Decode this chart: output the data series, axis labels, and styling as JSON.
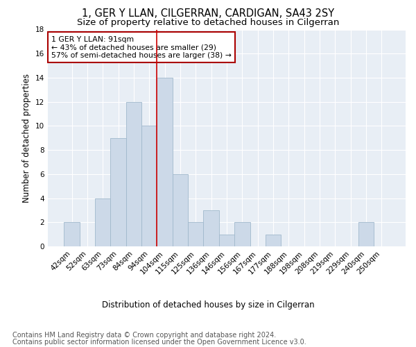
{
  "title": "1, GER Y LLAN, CILGERRAN, CARDIGAN, SA43 2SY",
  "subtitle": "Size of property relative to detached houses in Cilgerran",
  "xlabel": "Distribution of detached houses by size in Cilgerran",
  "ylabel": "Number of detached properties",
  "footer_line1": "Contains HM Land Registry data © Crown copyright and database right 2024.",
  "footer_line2": "Contains public sector information licensed under the Open Government Licence v3.0.",
  "annotation_line1": "1 GER Y LLAN: 91sqm",
  "annotation_line2": "← 43% of detached houses are smaller (29)",
  "annotation_line3": "57% of semi-detached houses are larger (38) →",
  "bar_categories": [
    "42sqm",
    "52sqm",
    "63sqm",
    "73sqm",
    "84sqm",
    "94sqm",
    "104sqm",
    "115sqm",
    "125sqm",
    "136sqm",
    "146sqm",
    "156sqm",
    "167sqm",
    "177sqm",
    "188sqm",
    "198sqm",
    "208sqm",
    "219sqm",
    "229sqm",
    "240sqm",
    "250sqm"
  ],
  "bar_values": [
    2,
    0,
    4,
    9,
    12,
    10,
    14,
    6,
    2,
    3,
    1,
    2,
    0,
    1,
    0,
    0,
    0,
    0,
    0,
    2,
    0
  ],
  "bar_color": "#ccd9e8",
  "bar_edge_color": "#a0b8cc",
  "red_line_x": 6,
  "ylim": [
    0,
    18
  ],
  "yticks": [
    0,
    2,
    4,
    6,
    8,
    10,
    12,
    14,
    16,
    18
  ],
  "background_color": "#ffffff",
  "plot_bg_color": "#e8eef5",
  "grid_color": "#ffffff",
  "title_fontsize": 10.5,
  "subtitle_fontsize": 9.5,
  "axis_label_fontsize": 8.5,
  "tick_fontsize": 7.5,
  "footer_fontsize": 7,
  "annotation_fontsize": 7.8,
  "annotation_box_color": "#ffffff",
  "annotation_box_edge": "#aa0000"
}
